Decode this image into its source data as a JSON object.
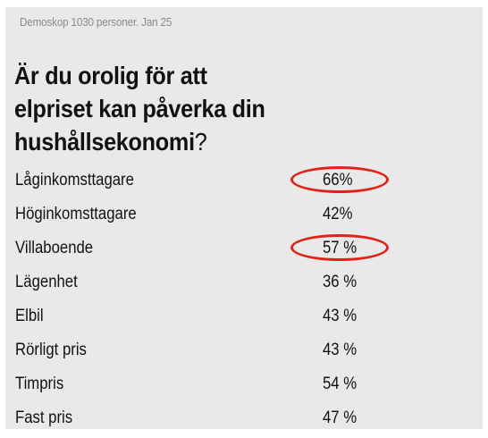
{
  "source": "Demoskop 1030 personer. Jan 25",
  "title": {
    "line1": "Är du orolig för att",
    "line2": "elpriset kan påverka din",
    "line3": "hushållsekonomi",
    "question_mark": "?"
  },
  "highlight_color": "#e2231a",
  "rows": [
    {
      "label": "Låginkomsttagare",
      "value": "66%",
      "circled": true
    },
    {
      "label": "Höginkomsttagare",
      "value": "42%",
      "circled": false
    },
    {
      "label": "Villaboende",
      "value": "57 %",
      "circled": true
    },
    {
      "label": "Lägenhet",
      "value": "36 %",
      "circled": false
    },
    {
      "label": "Elbil",
      "value": "43 %",
      "circled": false
    },
    {
      "label": "Rörligt pris",
      "value": "43 %",
      "circled": false
    },
    {
      "label": "Timpris",
      "value": "54 %",
      "circled": false
    },
    {
      "label": "Fast pris",
      "value": "47 %",
      "circled": false
    }
  ]
}
